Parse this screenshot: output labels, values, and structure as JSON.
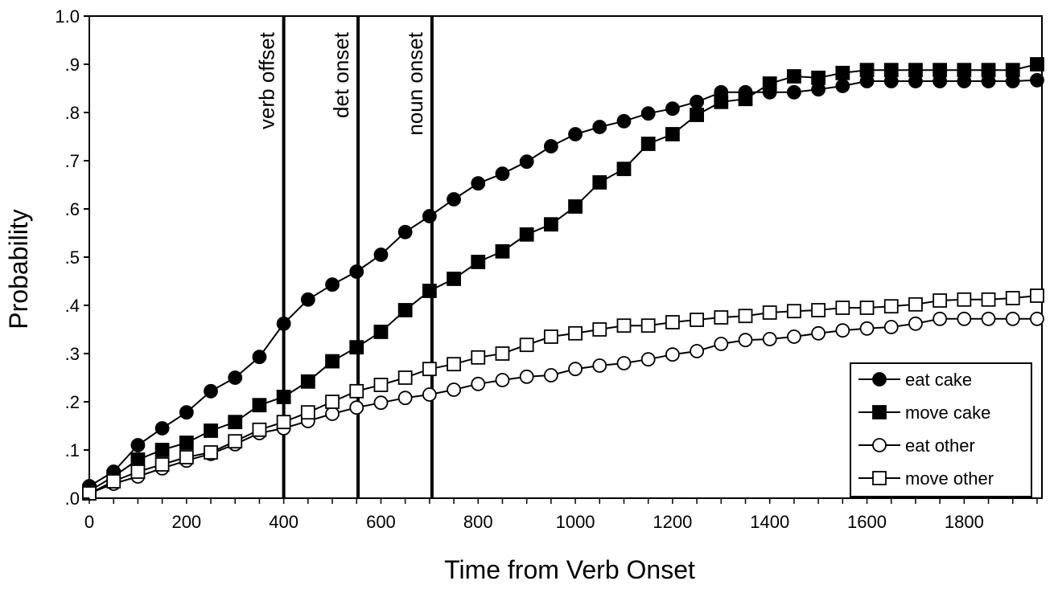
{
  "chart_data": {
    "type": "line",
    "title": "",
    "xlabel": "Time from Verb Onset",
    "ylabel": "Probability",
    "xlim": [
      0,
      1960
    ],
    "ylim": [
      0,
      1.0
    ],
    "x_ticks": [
      0,
      200,
      400,
      600,
      800,
      1000,
      1200,
      1400,
      1600,
      1800
    ],
    "x_tick_labels": [
      "0",
      "200",
      "400",
      "600",
      "800",
      "1000",
      "1200",
      "1400",
      "1600",
      "1800"
    ],
    "y_ticks": [
      0,
      0.1,
      0.2,
      0.3,
      0.4,
      0.5,
      0.6,
      0.7,
      0.8,
      0.9,
      1.0
    ],
    "y_tick_labels": [
      ".0",
      ".1",
      ".2",
      ".3",
      ".4",
      ".5",
      ".6",
      ".7",
      ".8",
      ".9",
      "1.0"
    ],
    "grid": false,
    "legend_position": "bottom-right",
    "x": [
      0,
      50,
      100,
      150,
      200,
      250,
      300,
      350,
      400,
      450,
      500,
      550,
      600,
      650,
      700,
      750,
      800,
      850,
      900,
      950,
      1000,
      1050,
      1100,
      1150,
      1200,
      1250,
      1300,
      1350,
      1400,
      1450,
      1500,
      1550,
      1600,
      1650,
      1700,
      1750,
      1800,
      1850,
      1900,
      1950
    ],
    "series": [
      {
        "name": "eat  cake",
        "marker": "filled-circle",
        "values": [
          0.025,
          0.055,
          0.11,
          0.145,
          0.178,
          0.222,
          0.25,
          0.293,
          0.362,
          0.412,
          0.443,
          0.47,
          0.505,
          0.552,
          0.585,
          0.62,
          0.653,
          0.673,
          0.698,
          0.73,
          0.755,
          0.77,
          0.782,
          0.798,
          0.808,
          0.822,
          0.842,
          0.842,
          0.842,
          0.842,
          0.848,
          0.855,
          0.865,
          0.865,
          0.865,
          0.865,
          0.865,
          0.865,
          0.865,
          0.867
        ]
      },
      {
        "name": "move  cake",
        "marker": "filled-square",
        "values": [
          0.015,
          0.045,
          0.08,
          0.1,
          0.115,
          0.14,
          0.158,
          0.193,
          0.21,
          0.242,
          0.284,
          0.313,
          0.345,
          0.39,
          0.43,
          0.455,
          0.49,
          0.512,
          0.547,
          0.568,
          0.605,
          0.655,
          0.683,
          0.735,
          0.755,
          0.795,
          0.822,
          0.828,
          0.86,
          0.875,
          0.872,
          0.882,
          0.888,
          0.888,
          0.888,
          0.888,
          0.888,
          0.888,
          0.888,
          0.9
        ]
      },
      {
        "name": "eat  other",
        "marker": "open-circle",
        "values": [
          0.01,
          0.03,
          0.045,
          0.062,
          0.078,
          0.092,
          0.112,
          0.135,
          0.145,
          0.16,
          0.175,
          0.188,
          0.198,
          0.208,
          0.215,
          0.225,
          0.237,
          0.245,
          0.252,
          0.255,
          0.268,
          0.275,
          0.28,
          0.288,
          0.298,
          0.305,
          0.32,
          0.328,
          0.33,
          0.335,
          0.342,
          0.348,
          0.352,
          0.355,
          0.362,
          0.372,
          0.372,
          0.372,
          0.372,
          0.372
        ]
      },
      {
        "name": "move  other",
        "marker": "open-square",
        "values": [
          0.01,
          0.035,
          0.055,
          0.07,
          0.085,
          0.095,
          0.118,
          0.142,
          0.158,
          0.178,
          0.2,
          0.222,
          0.235,
          0.25,
          0.268,
          0.278,
          0.292,
          0.3,
          0.318,
          0.335,
          0.342,
          0.35,
          0.358,
          0.358,
          0.365,
          0.37,
          0.375,
          0.378,
          0.385,
          0.388,
          0.39,
          0.395,
          0.395,
          0.398,
          0.402,
          0.41,
          0.412,
          0.412,
          0.415,
          0.42
        ]
      }
    ],
    "vertical_lines": [
      {
        "x": 400,
        "label": "verb offset"
      },
      {
        "x": 553,
        "label": "det  onset"
      },
      {
        "x": 705,
        "label": "noun onset"
      }
    ]
  }
}
